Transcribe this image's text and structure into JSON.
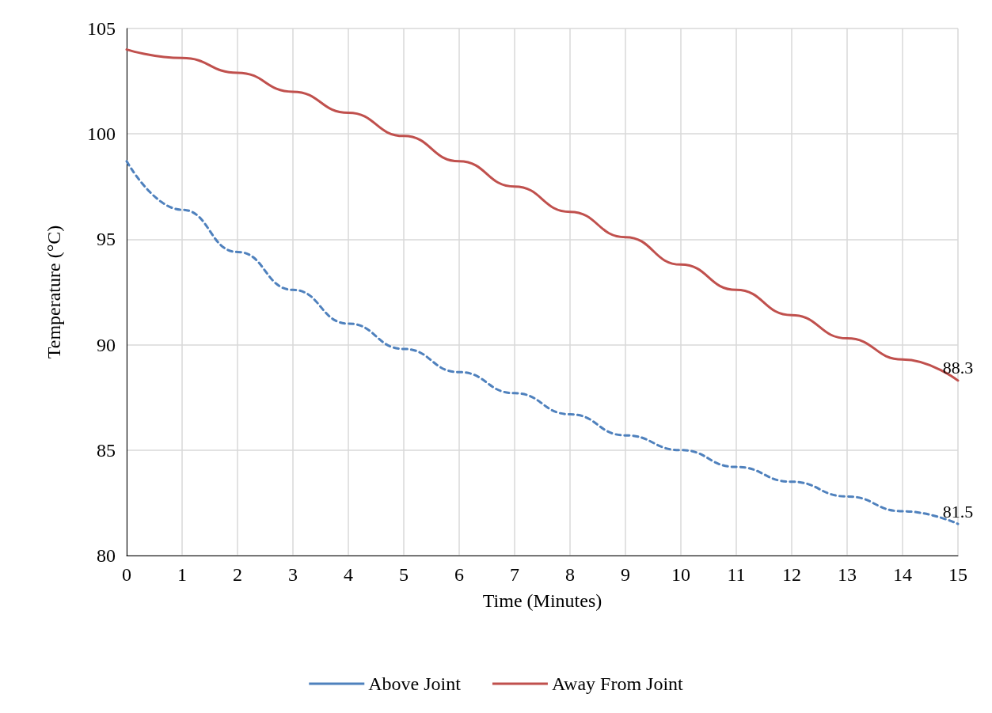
{
  "chart_data": {
    "type": "line",
    "xlabel": "Time (Minutes)",
    "ylabel": "Temperature (°C)",
    "x": [
      0,
      1,
      2,
      3,
      4,
      5,
      6,
      7,
      8,
      9,
      10,
      11,
      12,
      13,
      14,
      15
    ],
    "xlim": [
      0,
      15
    ],
    "xticks": [
      0,
      1,
      2,
      3,
      4,
      5,
      6,
      7,
      8,
      9,
      10,
      11,
      12,
      13,
      14,
      15
    ],
    "ylim": [
      80,
      105
    ],
    "yticks": [
      80,
      85,
      90,
      95,
      100,
      105
    ],
    "grid": true,
    "legend": "bottom",
    "marker": "none",
    "series": [
      {
        "name": "Above Joint",
        "color": "#4f81bd",
        "line_style": "dashed",
        "values": [
          98.7,
          96.4,
          94.4,
          92.6,
          91.0,
          89.8,
          88.7,
          87.7,
          86.7,
          85.7,
          85.0,
          84.2,
          83.5,
          82.8,
          82.1,
          81.5
        ],
        "value_labels": [
          null,
          null,
          null,
          null,
          null,
          null,
          null,
          null,
          null,
          null,
          null,
          null,
          null,
          null,
          null,
          "81.5"
        ]
      },
      {
        "name": "Away From Joint",
        "color": "#c0504d",
        "line_style": "solid",
        "values": [
          104.0,
          103.6,
          102.9,
          102.0,
          101.0,
          99.9,
          98.7,
          97.5,
          96.3,
          95.1,
          93.8,
          92.6,
          91.4,
          90.3,
          89.3,
          88.3
        ],
        "value_labels": [
          null,
          null,
          null,
          null,
          null,
          null,
          null,
          null,
          null,
          null,
          null,
          null,
          null,
          null,
          null,
          "88.3"
        ]
      }
    ]
  }
}
